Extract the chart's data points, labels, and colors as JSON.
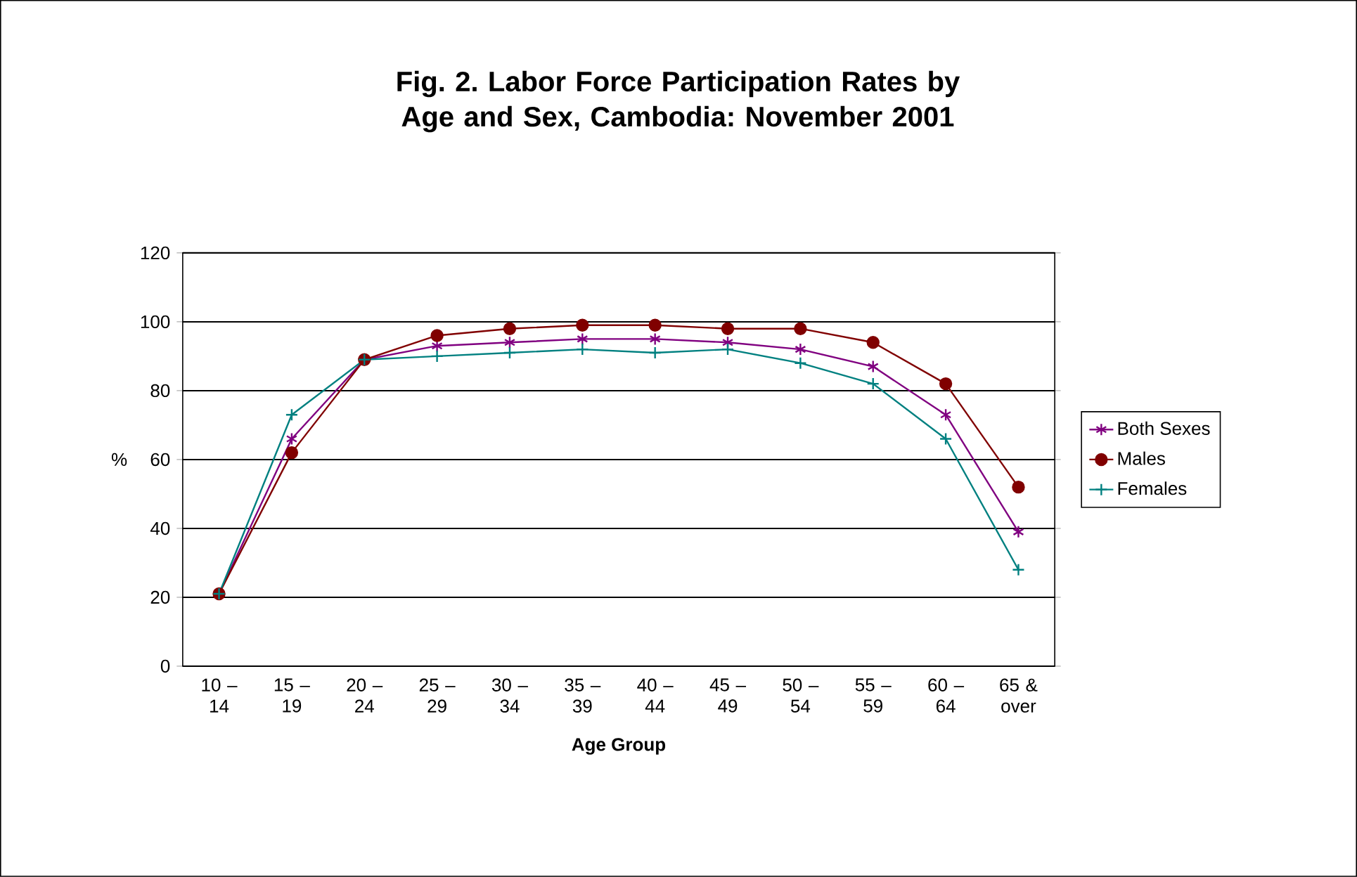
{
  "chart_data": {
    "type": "line",
    "title": "Fig. 2. Labor Force Participation Rates by Age and Sex, Cambodia: November 2001",
    "xlabel": "Age Group",
    "ylabel": "%",
    "categories": [
      "10 – 14",
      "15 – 19",
      "20 – 24",
      "25 – 29",
      "30 – 34",
      "35 – 39",
      "40 – 44",
      "45 – 49",
      "50 – 54",
      "55 – 59",
      "60 – 64",
      "65 & over"
    ],
    "series": [
      {
        "name": "Both Sexes",
        "color": "#800080",
        "marker": "cross",
        "values": [
          21,
          66,
          89,
          93,
          94,
          95,
          95,
          94,
          92,
          87,
          73,
          39
        ]
      },
      {
        "name": "Males",
        "color": "#800000",
        "marker": "circle",
        "values": [
          21,
          62,
          89,
          96,
          98,
          99,
          99,
          98,
          98,
          94,
          82,
          52
        ]
      },
      {
        "name": "Females",
        "color": "#008080",
        "marker": "cross",
        "values": [
          21,
          73,
          89,
          90,
          91,
          92,
          91,
          92,
          88,
          82,
          66,
          28
        ]
      }
    ],
    "ylim": [
      0,
      120
    ],
    "yticks": [
      0,
      20,
      40,
      60,
      80,
      100,
      120
    ],
    "grid": "y",
    "legend": "right"
  }
}
